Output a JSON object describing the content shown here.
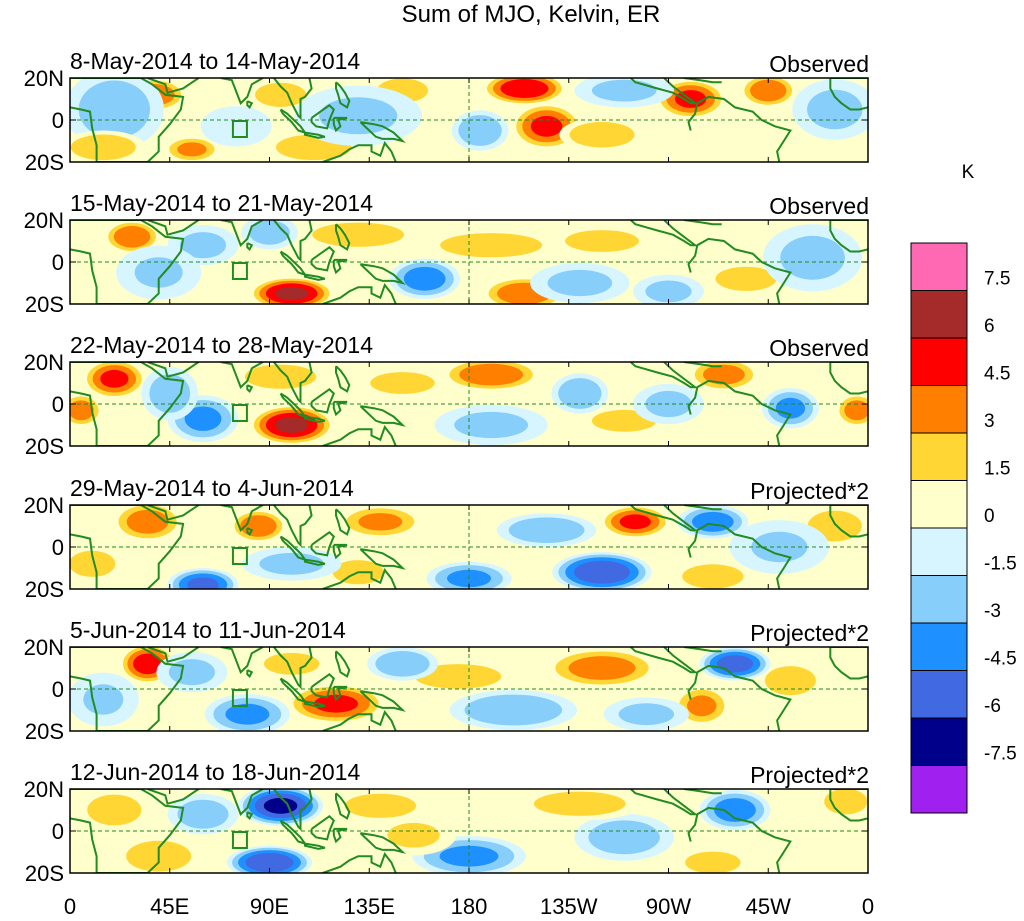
{
  "figure": {
    "title": "Sum of MJO, Kelvin, ER",
    "units": "K"
  },
  "colors": {
    "levels": [
      "#a020f0",
      "#00008b",
      "#4169e1",
      "#1e90ff",
      "#87cefa",
      "#d7f5ff",
      "#ffffcc",
      "#ffd633",
      "#ff7f00",
      "#ff0000",
      "#a52a2a",
      "#ff69b4"
    ],
    "land": "#228b22",
    "grid": "#228b22"
  },
  "chart_data": {
    "type": "heatmap",
    "title": "Sum of MJO, Kelvin, ER",
    "units": "K",
    "ylabel_ticks": [
      "20N",
      "0",
      "20S"
    ],
    "xlabel_ticks": [
      "0",
      "45E",
      "90E",
      "135E",
      "180",
      "135W",
      "90W",
      "45W",
      "0"
    ],
    "color_levels": [
      -7.5,
      -6,
      -4.5,
      -3,
      -1.5,
      0,
      1.5,
      3,
      4.5,
      6,
      7.5
    ],
    "color_labels": [
      "7.5",
      "6",
      "4.5",
      "3",
      "1.5",
      "0",
      "-1.5",
      "-3",
      "-4.5",
      "-6",
      "-7.5"
    ],
    "lat_range": [
      -20,
      20
    ],
    "lon_range": [
      0,
      360
    ],
    "panels": [
      {
        "period": "8-May-2014 to 14-May-2014",
        "kind": "Observed",
        "anomalies": [
          {
            "lon": 38,
            "lat": 12,
            "value": 4.5,
            "sx": 9,
            "sy": 5
          },
          {
            "lon": 20,
            "lat": 5,
            "value": -2.5,
            "sx": 14,
            "sy": 12
          },
          {
            "lon": 15,
            "lat": -13,
            "value": 3,
            "sx": 12,
            "sy": 5
          },
          {
            "lon": 55,
            "lat": -14,
            "value": 3.5,
            "sx": 8,
            "sy": 4
          },
          {
            "lon": 95,
            "lat": 12,
            "value": 2.5,
            "sx": 10,
            "sy": 5
          },
          {
            "lon": 110,
            "lat": -13,
            "value": 3,
            "sx": 14,
            "sy": 5
          },
          {
            "lon": 150,
            "lat": 14,
            "value": 2.5,
            "sx": 10,
            "sy": 5
          },
          {
            "lon": 205,
            "lat": 15,
            "value": 6,
            "sx": 12,
            "sy": 5
          },
          {
            "lon": 215,
            "lat": -3,
            "value": 5,
            "sx": 10,
            "sy": 7
          },
          {
            "lon": 240,
            "lat": -7,
            "value": 3,
            "sx": 12,
            "sy": 5
          },
          {
            "lon": 280,
            "lat": 10,
            "value": 5,
            "sx": 10,
            "sy": 6
          },
          {
            "lon": 315,
            "lat": 14,
            "value": 4.5,
            "sx": 8,
            "sy": 5
          },
          {
            "lon": 185,
            "lat": -5,
            "value": -3,
            "sx": 8,
            "sy": 6
          },
          {
            "lon": 250,
            "lat": 14,
            "value": -2,
            "sx": 14,
            "sy": 5
          },
          {
            "lon": 345,
            "lat": 5,
            "value": -2,
            "sx": 12,
            "sy": 9
          },
          {
            "lon": 130,
            "lat": 2,
            "value": -1.8,
            "sx": 18,
            "sy": 9
          },
          {
            "lon": 75,
            "lat": -3,
            "value": -1.5,
            "sx": 10,
            "sy": 6
          }
        ]
      },
      {
        "period": "15-May-2014 to 21-May-2014",
        "kind": "Observed",
        "anomalies": [
          {
            "lon": 28,
            "lat": 12,
            "value": 4.5,
            "sx": 8,
            "sy": 5
          },
          {
            "lon": 100,
            "lat": -15,
            "value": 6.5,
            "sx": 12,
            "sy": 5
          },
          {
            "lon": 205,
            "lat": -15,
            "value": 4.5,
            "sx": 12,
            "sy": 5
          },
          {
            "lon": 130,
            "lat": 13,
            "value": 2.5,
            "sx": 18,
            "sy": 5
          },
          {
            "lon": 190,
            "lat": 8,
            "value": 2.5,
            "sx": 20,
            "sy": 5
          },
          {
            "lon": 240,
            "lat": 10,
            "value": 2,
            "sx": 16,
            "sy": 5
          },
          {
            "lon": 305,
            "lat": -8,
            "value": 2.5,
            "sx": 12,
            "sy": 5
          },
          {
            "lon": 60,
            "lat": 8,
            "value": -2,
            "sx": 10,
            "sy": 6
          },
          {
            "lon": 90,
            "lat": 14,
            "value": -2.5,
            "sx": 8,
            "sy": 5
          },
          {
            "lon": 160,
            "lat": -8,
            "value": -4,
            "sx": 10,
            "sy": 6
          },
          {
            "lon": 230,
            "lat": -10,
            "value": -2,
            "sx": 14,
            "sy": 6
          },
          {
            "lon": 270,
            "lat": -14,
            "value": -2,
            "sx": 10,
            "sy": 5
          },
          {
            "lon": 335,
            "lat": 2,
            "value": -2,
            "sx": 14,
            "sy": 10
          },
          {
            "lon": 40,
            "lat": -5,
            "value": -1.6,
            "sx": 12,
            "sy": 8
          }
        ]
      },
      {
        "period": "22-May-2014 to 28-May-2014",
        "kind": "Observed",
        "anomalies": [
          {
            "lon": 20,
            "lat": 12,
            "value": 5,
            "sx": 9,
            "sy": 6
          },
          {
            "lon": 5,
            "lat": -3,
            "value": 4,
            "sx": 6,
            "sy": 5
          },
          {
            "lon": 355,
            "lat": -3,
            "value": 4,
            "sx": 6,
            "sy": 5
          },
          {
            "lon": 100,
            "lat": -10,
            "value": 6.5,
            "sx": 12,
            "sy": 6
          },
          {
            "lon": 190,
            "lat": 14,
            "value": 4.5,
            "sx": 14,
            "sy": 5
          },
          {
            "lon": 295,
            "lat": 14,
            "value": 4,
            "sx": 10,
            "sy": 5
          },
          {
            "lon": 95,
            "lat": 13,
            "value": 2.5,
            "sx": 14,
            "sy": 5
          },
          {
            "lon": 150,
            "lat": 10,
            "value": 2,
            "sx": 14,
            "sy": 5
          },
          {
            "lon": 250,
            "lat": -8,
            "value": 2,
            "sx": 14,
            "sy": 5
          },
          {
            "lon": 60,
            "lat": -7,
            "value": -3.5,
            "sx": 10,
            "sy": 7
          },
          {
            "lon": 45,
            "lat": 5,
            "value": -2.5,
            "sx": 8,
            "sy": 8
          },
          {
            "lon": 230,
            "lat": 5,
            "value": -3,
            "sx": 8,
            "sy": 6
          },
          {
            "lon": 325,
            "lat": -2,
            "value": -3.5,
            "sx": 8,
            "sy": 6
          },
          {
            "lon": 190,
            "lat": -10,
            "value": -2,
            "sx": 16,
            "sy": 6
          },
          {
            "lon": 270,
            "lat": 0,
            "value": -2,
            "sx": 10,
            "sy": 6
          }
        ]
      },
      {
        "period": "29-May-2014 to 4-Jun-2014",
        "kind": "Projected*2",
        "anomalies": [
          {
            "lon": 35,
            "lat": 12,
            "value": 4,
            "sx": 10,
            "sy": 6
          },
          {
            "lon": 85,
            "lat": 10,
            "value": 4.5,
            "sx": 8,
            "sy": 5
          },
          {
            "lon": 140,
            "lat": 12,
            "value": 3.5,
            "sx": 12,
            "sy": 5
          },
          {
            "lon": 255,
            "lat": 12,
            "value": 5,
            "sx": 10,
            "sy": 5
          },
          {
            "lon": 345,
            "lat": 10,
            "value": 3,
            "sx": 10,
            "sy": 6
          },
          {
            "lon": 130,
            "lat": -12,
            "value": 2.5,
            "sx": 10,
            "sy": 5
          },
          {
            "lon": 290,
            "lat": -14,
            "value": 2.5,
            "sx": 12,
            "sy": 5
          },
          {
            "lon": 10,
            "lat": -8,
            "value": 2,
            "sx": 10,
            "sy": 6
          },
          {
            "lon": 60,
            "lat": -18,
            "value": -5,
            "sx": 10,
            "sy": 5
          },
          {
            "lon": 180,
            "lat": -15,
            "value": -3.5,
            "sx": 12,
            "sy": 5
          },
          {
            "lon": 240,
            "lat": -12,
            "value": -6,
            "sx": 14,
            "sy": 6
          },
          {
            "lon": 215,
            "lat": 8,
            "value": -3,
            "sx": 14,
            "sy": 5
          },
          {
            "lon": 290,
            "lat": 12,
            "value": -4,
            "sx": 10,
            "sy": 5
          },
          {
            "lon": 100,
            "lat": -8,
            "value": -2,
            "sx": 14,
            "sy": 5
          },
          {
            "lon": 320,
            "lat": 0,
            "value": -1.6,
            "sx": 14,
            "sy": 8
          }
        ]
      },
      {
        "period": "5-Jun-2014 to 11-Jun-2014",
        "kind": "Projected*2",
        "anomalies": [
          {
            "lon": 35,
            "lat": 12,
            "value": 5.5,
            "sx": 8,
            "sy": 6
          },
          {
            "lon": 120,
            "lat": -7,
            "value": 5,
            "sx": 14,
            "sy": 6
          },
          {
            "lon": 240,
            "lat": 10,
            "value": 4,
            "sx": 16,
            "sy": 6
          },
          {
            "lon": 285,
            "lat": -8,
            "value": 3.5,
            "sx": 8,
            "sy": 6
          },
          {
            "lon": 325,
            "lat": 4,
            "value": 2.5,
            "sx": 10,
            "sy": 6
          },
          {
            "lon": 175,
            "lat": 6,
            "value": 1.8,
            "sx": 20,
            "sy": 6
          },
          {
            "lon": 100,
            "lat": 12,
            "value": 2,
            "sx": 12,
            "sy": 5
          },
          {
            "lon": 80,
            "lat": -12,
            "value": -3.5,
            "sx": 12,
            "sy": 6
          },
          {
            "lon": 150,
            "lat": 12,
            "value": -3,
            "sx": 10,
            "sy": 5
          },
          {
            "lon": 300,
            "lat": 12,
            "value": -5.5,
            "sx": 10,
            "sy": 5
          },
          {
            "lon": 200,
            "lat": -10,
            "value": -3,
            "sx": 18,
            "sy": 6
          },
          {
            "lon": 260,
            "lat": -12,
            "value": -2,
            "sx": 12,
            "sy": 5
          },
          {
            "lon": 55,
            "lat": 8,
            "value": -2,
            "sx": 10,
            "sy": 6
          },
          {
            "lon": 15,
            "lat": -5,
            "value": -1.6,
            "sx": 10,
            "sy": 8
          }
        ]
      },
      {
        "period": "12-Jun-2014 to 18-Jun-2014",
        "kind": "Projected*2",
        "anomalies": [
          {
            "lon": 95,
            "lat": 12,
            "value": -6.5,
            "sx": 12,
            "sy": 6
          },
          {
            "lon": 90,
            "lat": -15,
            "value": -6,
            "sx": 12,
            "sy": 5
          },
          {
            "lon": 180,
            "lat": -12,
            "value": -3.5,
            "sx": 16,
            "sy": 6
          },
          {
            "lon": 300,
            "lat": 10,
            "value": -4,
            "sx": 10,
            "sy": 6
          },
          {
            "lon": 250,
            "lat": -3,
            "value": -2.5,
            "sx": 14,
            "sy": 7
          },
          {
            "lon": 60,
            "lat": 8,
            "value": -2.5,
            "sx": 10,
            "sy": 6
          },
          {
            "lon": 20,
            "lat": 10,
            "value": 3,
            "sx": 10,
            "sy": 6
          },
          {
            "lon": 40,
            "lat": -12,
            "value": 3,
            "sx": 12,
            "sy": 6
          },
          {
            "lon": 140,
            "lat": 12,
            "value": 2.5,
            "sx": 14,
            "sy": 5
          },
          {
            "lon": 230,
            "lat": 13,
            "value": 2.5,
            "sx": 18,
            "sy": 5
          },
          {
            "lon": 350,
            "lat": 14,
            "value": 3,
            "sx": 8,
            "sy": 5
          },
          {
            "lon": 290,
            "lat": -15,
            "value": 2,
            "sx": 12,
            "sy": 5
          },
          {
            "lon": 155,
            "lat": -2,
            "value": 1.8,
            "sx": 12,
            "sy": 6
          }
        ]
      }
    ]
  }
}
